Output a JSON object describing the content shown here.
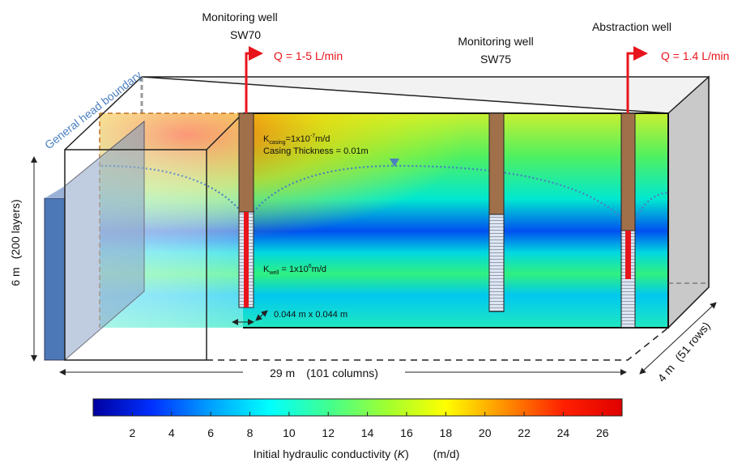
{
  "wells": [
    {
      "label": "Monitoring well",
      "id": "SW70",
      "flow": "Q = 1-5 L/min"
    },
    {
      "label": "Monitoring well",
      "id": "SW75"
    },
    {
      "label": "Abstraction well",
      "flow": "Q = 1.4 L/min"
    }
  ],
  "boundary_label": "General head boundary",
  "dimensions": {
    "height": "6 m",
    "layers": "(200  layers)",
    "length": "29 m",
    "columns": "(101 columns)",
    "width": "4 m",
    "rows": "(51 rows)"
  },
  "annotations": {
    "casing_k": {
      "symbol": "K",
      "subscript": "casing",
      "value": "=1x10",
      "exponent": "-7",
      "unit": "m/d"
    },
    "casing_thickness": "Casing Thickness = 0.01m",
    "well_k": {
      "symbol": "K",
      "subscript": "well",
      "value": " = 1x10",
      "exponent": "6",
      "unit": "m/d"
    },
    "cell_size": "0.044 m x 0.044 m"
  },
  "colorbar": {
    "title": "Initial hydraulic conductivity (",
    "symbol": "K",
    "title_end": ")",
    "unit": "(m/d)",
    "lim": [
      0,
      27
    ],
    "ticks": [
      2,
      4,
      6,
      8,
      10,
      12,
      14,
      16,
      18,
      20,
      22,
      24,
      26
    ],
    "colormap": [
      "#0000a0",
      "#0030ff",
      "#00a0ff",
      "#00ffff",
      "#40ff90",
      "#a0ff30",
      "#ffff00",
      "#ff9000",
      "#ff2000",
      "#e00000"
    ]
  }
}
